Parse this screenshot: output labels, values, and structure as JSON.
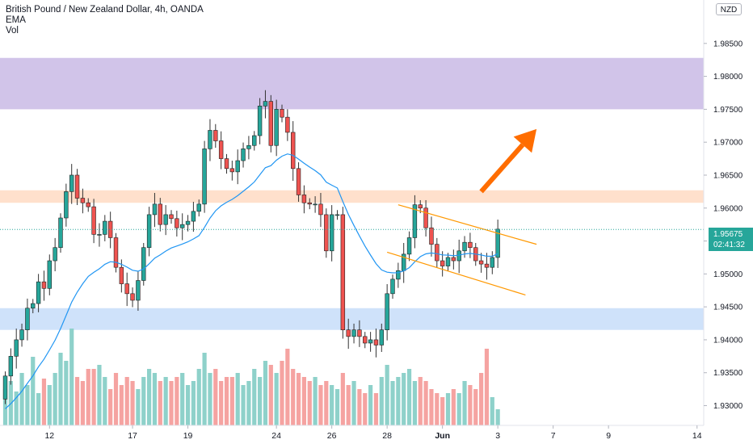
{
  "header": {
    "title": "British Pound / New Zealand Dollar, 4h, OANDA",
    "indicator_1": "EMA",
    "indicator_2": "Vol"
  },
  "price_axis": {
    "currency": "NZD",
    "current_price": "1.95675",
    "countdown": "02:41:32"
  },
  "colors": {
    "up": "#26a69a",
    "down": "#ef5350",
    "ema": "#2196f3",
    "resistance_zone": "#d1c4e9",
    "mid_zone": "#ffe0cc",
    "support_zone": "#cfe2fa",
    "channel": "#ff9800",
    "arrow": "#ff6d00",
    "vol_up": "#8ed1ca",
    "vol_down": "#f5a3a1"
  },
  "chart_data": {
    "type": "candlestick",
    "title": "British Pound / New Zealand Dollar, 4h, OANDA",
    "symbol": "GBPNZD",
    "timeframe": "4h",
    "exchange": "OANDA",
    "y_ticks": [
      "1.98500",
      "1.98000",
      "1.97500",
      "1.97000",
      "1.96500",
      "1.96000",
      "1.95500",
      "1.95000",
      "1.94500",
      "1.94000",
      "1.93500",
      "1.93000"
    ],
    "x_ticks": [
      "12",
      "17",
      "19",
      "24",
      "26",
      "28",
      "Jun",
      "3",
      "7",
      "9",
      "14"
    ],
    "ylim": [
      1.927,
      1.99
    ],
    "zones": [
      {
        "name": "resistance",
        "from": 1.975,
        "to": 1.9828
      },
      {
        "name": "mid",
        "from": 1.9608,
        "to": 1.9627
      },
      {
        "name": "support",
        "from": 1.9415,
        "to": 1.9448
      }
    ],
    "channel": {
      "upper": [
        {
          "bar": 71,
          "price": 1.9605
        },
        {
          "bar": 96,
          "price": 1.9545
        }
      ],
      "lower": [
        {
          "bar": 69,
          "price": 1.9533
        },
        {
          "bar": 94,
          "price": 1.9468
        }
      ]
    },
    "arrow": {
      "from": {
        "bar": 86,
        "price": 1.9625
      },
      "to": {
        "bar": 96,
        "price": 1.972
      }
    },
    "closes": [
      1.9345,
      1.9375,
      1.94,
      1.9415,
      1.9448,
      1.9455,
      1.9488,
      1.9478,
      1.952,
      1.954,
      1.9585,
      1.9625,
      1.965,
      1.9615,
      1.9608,
      1.9602,
      1.956,
      1.956,
      1.958,
      1.9555,
      1.951,
      1.9485,
      1.947,
      1.946,
      1.949,
      1.954,
      1.959,
      1.9606,
      1.9575,
      1.959,
      1.9584,
      1.957,
      1.9575,
      1.958,
      1.9595,
      1.9606,
      1.969,
      1.9718,
      1.9702,
      1.9675,
      1.966,
      1.9655,
      1.9672,
      1.969,
      1.9695,
      1.971,
      1.9755,
      1.9762,
      1.9695,
      1.975,
      1.9738,
      1.9715,
      1.966,
      1.962,
      1.9608,
      1.9606,
      1.9606,
      1.959,
      1.9535,
      1.959,
      1.959,
      1.9415,
      1.9405,
      1.9415,
      1.9405,
      1.9395,
      1.94,
      1.9392,
      1.9415,
      1.947,
      1.9492,
      1.9505,
      1.953,
      1.9555,
      1.9605,
      1.96,
      1.957,
      1.9545,
      1.952,
      1.9512,
      1.9525,
      1.952,
      1.9535,
      1.9548,
      1.954,
      1.952,
      1.9515,
      1.951,
      1.9525,
      1.9568
    ],
    "volume": [
      45,
      55,
      42,
      65,
      50,
      85,
      40,
      58,
      50,
      65,
      90,
      80,
      120,
      60,
      55,
      70,
      70,
      75,
      60,
      45,
      65,
      50,
      60,
      55,
      45,
      60,
      70,
      65,
      55,
      60,
      55,
      60,
      65,
      50,
      55,
      70,
      90,
      65,
      70,
      55,
      60,
      60,
      65,
      50,
      55,
      70,
      60,
      80,
      75,
      65,
      80,
      95,
      70,
      65,
      60,
      55,
      60,
      50,
      55,
      50,
      45,
      65,
      50,
      55,
      45,
      40,
      50,
      40,
      60,
      75,
      55,
      60,
      65,
      70,
      55,
      60,
      55,
      45,
      40,
      35,
      40,
      45,
      40,
      55,
      50,
      45,
      65,
      95,
      35,
      20
    ]
  }
}
